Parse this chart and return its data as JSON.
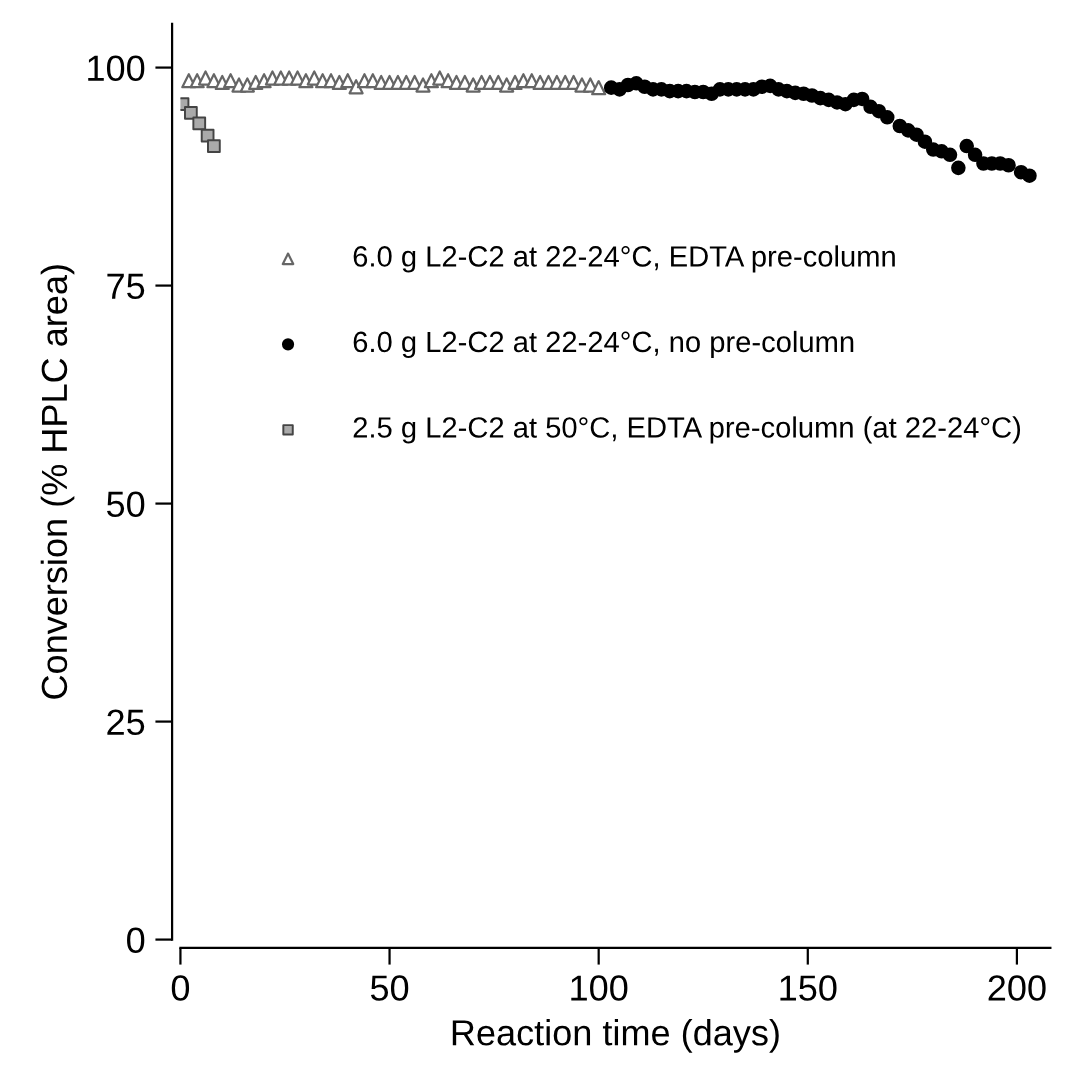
{
  "chart_data": {
    "type": "scatter",
    "xlabel": "Reaction time (days)",
    "ylabel": "Conversion (% HPLC area)",
    "xlim": [
      0,
      208
    ],
    "ylim": [
      0,
      105
    ],
    "xticks": [
      0,
      50,
      100,
      150,
      200
    ],
    "yticks": [
      0,
      25,
      50,
      75,
      100
    ],
    "grid": false,
    "legend": "left",
    "series": [
      {
        "name": "6.0 g L2-C2 at 22-24°C, EDTA pre-column",
        "color": "#666666",
        "marker": "triangle",
        "x": [
          2,
          4,
          6,
          8,
          10,
          12,
          14,
          16,
          18,
          20,
          22,
          24,
          26,
          28,
          30,
          32,
          34,
          36,
          38,
          40,
          42,
          44,
          46,
          48,
          50,
          52,
          54,
          56,
          58,
          60,
          62,
          64,
          66,
          68,
          70,
          72,
          74,
          76,
          78,
          80,
          82,
          84,
          86,
          88,
          90,
          92,
          94,
          96,
          98,
          100
        ],
        "values": [
          98.5,
          98.5,
          98.8,
          98.5,
          98.3,
          98.5,
          98.0,
          98.0,
          98.3,
          98.5,
          98.8,
          98.8,
          98.8,
          98.8,
          98.5,
          98.8,
          98.5,
          98.5,
          98.3,
          98.5,
          97.8,
          98.5,
          98.5,
          98.3,
          98.3,
          98.3,
          98.3,
          98.3,
          98.0,
          98.5,
          98.8,
          98.5,
          98.3,
          98.3,
          98.0,
          98.3,
          98.3,
          98.3,
          98.0,
          98.3,
          98.5,
          98.5,
          98.3,
          98.3,
          98.3,
          98.3,
          98.3,
          98.0,
          98.0,
          97.7
        ]
      },
      {
        "name": "6.0 g L2-C2 at 22-24°C, no pre-column",
        "color": "#000000",
        "marker": "circle",
        "x": [
          103,
          105,
          107,
          109,
          111,
          113,
          115,
          117,
          119,
          121,
          123,
          125,
          127,
          129,
          131,
          133,
          135,
          137,
          139,
          141,
          143,
          145,
          147,
          149,
          151,
          153,
          155,
          157,
          159,
          161,
          163,
          165,
          167,
          169,
          172,
          174,
          176,
          178,
          180,
          182,
          184,
          186,
          188,
          190,
          192,
          194,
          196,
          198,
          201,
          203
        ],
        "values": [
          97.7,
          97.5,
          98.0,
          98.2,
          97.8,
          97.5,
          97.5,
          97.3,
          97.3,
          97.3,
          97.2,
          97.2,
          97.0,
          97.5,
          97.5,
          97.5,
          97.5,
          97.5,
          97.8,
          97.9,
          97.5,
          97.3,
          97.1,
          97.0,
          96.8,
          96.5,
          96.3,
          96.0,
          95.8,
          96.3,
          96.4,
          95.5,
          95.0,
          94.3,
          93.3,
          92.8,
          92.3,
          91.5,
          90.6,
          90.4,
          90.0,
          88.5,
          91.0,
          90.0,
          89.0,
          89.0,
          89.0,
          88.8,
          88.0,
          87.6
        ]
      },
      {
        "name": "2.5 g L2-C2 at 50°C, EDTA pre-column (at 22-24°C)",
        "color": "#aaaaaa",
        "marker": "square",
        "x": [
          0.5,
          2.5,
          4.5,
          6.5,
          8.0
        ],
        "values": [
          95.8,
          94.8,
          93.6,
          92.2,
          91.0
        ]
      }
    ]
  }
}
